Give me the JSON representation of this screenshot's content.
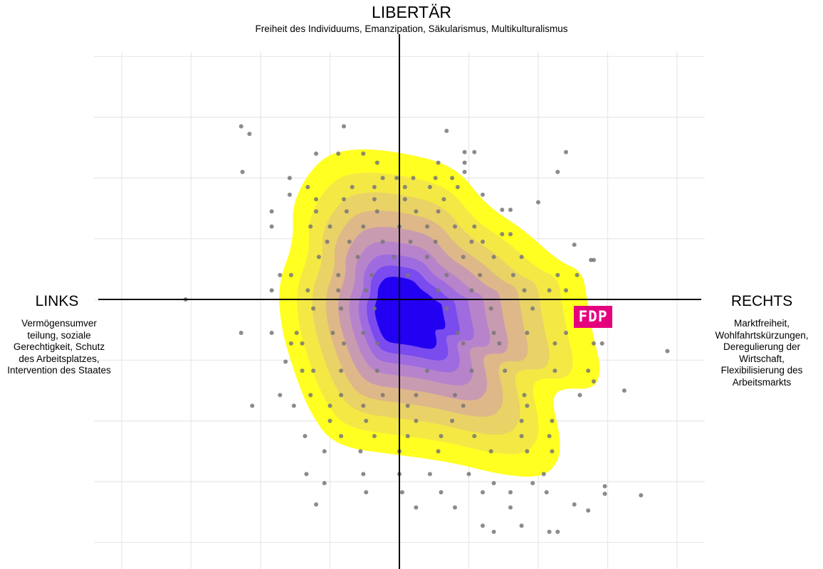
{
  "chart_data": {
    "type": "scatter",
    "title": "",
    "axes": {
      "top": {
        "label": "LIBERTÄR",
        "description": "Freiheit des Individuums, Emanzipation, Säkularismus, Multikulturalismus"
      },
      "left": {
        "label": "LINKS",
        "description": "Vermögensumver teilung, soziale Gerechtigkeit, Schutz des Arbeitsplatzes, Intervention des Staates"
      },
      "right": {
        "label": "RECHTS",
        "description": "Marktfreiheit, Wohlfahrtskürzungen, Deregulierung der Wirtschaft, Flexibilisierung des Arbeitsmarkts"
      }
    },
    "xlim": [
      -11,
      11
    ],
    "ylim": [
      -9.5,
      9.5
    ],
    "grid": true,
    "density_levels": 9,
    "density_colors": [
      "#ffff22",
      "#f4e845",
      "#e9d266",
      "#deb888",
      "#c99bb0",
      "#b784cc",
      "#9f6ce0",
      "#7a4bee",
      "#2200f2"
    ],
    "party": {
      "label": "FDP",
      "x": 7.0,
      "y": -0.55,
      "color": "#e5007d"
    },
    "points": [
      [
        -5.7,
        5.7
      ],
      [
        -5.4,
        5.45
      ],
      [
        -2.0,
        5.7
      ],
      [
        1.7,
        5.55
      ],
      [
        -3.0,
        4.8
      ],
      [
        -2.2,
        4.8
      ],
      [
        -1.3,
        4.8
      ],
      [
        -0.8,
        4.5
      ],
      [
        1.4,
        4.5
      ],
      [
        2.35,
        4.85
      ],
      [
        2.7,
        4.85
      ],
      [
        6.0,
        4.85
      ],
      [
        -5.65,
        4.2
      ],
      [
        -3.95,
        4.0
      ],
      [
        -0.6,
        4.0
      ],
      [
        -0.1,
        4.0
      ],
      [
        0.5,
        4.0
      ],
      [
        1.3,
        4.0
      ],
      [
        1.9,
        4.0
      ],
      [
        2.35,
        4.5
      ],
      [
        2.35,
        4.2
      ],
      [
        5.7,
        4.2
      ],
      [
        -3.3,
        3.7
      ],
      [
        -1.7,
        3.7
      ],
      [
        -0.9,
        3.7
      ],
      [
        0.2,
        3.7
      ],
      [
        1.1,
        3.7
      ],
      [
        2.1,
        3.7
      ],
      [
        -3.95,
        3.45
      ],
      [
        -3.0,
        3.3
      ],
      [
        -2.0,
        3.3
      ],
      [
        -0.9,
        3.3
      ],
      [
        0.2,
        3.3
      ],
      [
        1.6,
        3.3
      ],
      [
        3.0,
        3.45
      ],
      [
        -4.6,
        2.9
      ],
      [
        -3.0,
        2.9
      ],
      [
        -1.9,
        2.9
      ],
      [
        -0.8,
        2.9
      ],
      [
        0.6,
        2.9
      ],
      [
        1.4,
        2.9
      ],
      [
        3.7,
        2.95
      ],
      [
        4.0,
        2.95
      ],
      [
        5.0,
        3.2
      ],
      [
        -4.6,
        2.4
      ],
      [
        -3.2,
        2.4
      ],
      [
        -2.5,
        2.4
      ],
      [
        -1.3,
        2.4
      ],
      [
        0.0,
        2.4
      ],
      [
        1.0,
        2.4
      ],
      [
        2.0,
        2.4
      ],
      [
        2.7,
        2.4
      ],
      [
        3.7,
        2.15
      ],
      [
        4.0,
        2.15
      ],
      [
        -2.6,
        1.9
      ],
      [
        -1.8,
        1.9
      ],
      [
        -0.6,
        1.9
      ],
      [
        0.4,
        1.9
      ],
      [
        1.3,
        1.9
      ],
      [
        2.6,
        1.9
      ],
      [
        3.0,
        1.9
      ],
      [
        6.3,
        1.8
      ],
      [
        -2.9,
        1.4
      ],
      [
        -1.5,
        1.4
      ],
      [
        -0.2,
        1.4
      ],
      [
        1.0,
        1.4
      ],
      [
        2.3,
        1.4
      ],
      [
        3.4,
        1.4
      ],
      [
        4.4,
        1.4
      ],
      [
        6.9,
        1.3
      ],
      [
        -4.3,
        0.8
      ],
      [
        -3.9,
        0.8
      ],
      [
        -2.2,
        0.8
      ],
      [
        -1.0,
        0.8
      ],
      [
        0.3,
        0.8
      ],
      [
        1.7,
        0.8
      ],
      [
        2.9,
        0.8
      ],
      [
        4.1,
        0.8
      ],
      [
        5.7,
        0.8
      ],
      [
        6.4,
        0.8
      ],
      [
        7.0,
        1.3
      ],
      [
        -7.7,
        0.0
      ],
      [
        -4.6,
        0.3
      ],
      [
        -3.3,
        0.3
      ],
      [
        -2.2,
        0.3
      ],
      [
        -1.2,
        0.3
      ],
      [
        1.4,
        0.3
      ],
      [
        2.6,
        0.3
      ],
      [
        4.5,
        0.3
      ],
      [
        5.4,
        0.3
      ],
      [
        6.0,
        0.3
      ],
      [
        -3.1,
        -0.3
      ],
      [
        -2.1,
        -0.3
      ],
      [
        -0.9,
        -0.3
      ],
      [
        1.7,
        -0.3
      ],
      [
        3.3,
        -0.3
      ],
      [
        4.8,
        -0.3
      ],
      [
        6.4,
        -0.3
      ],
      [
        -5.7,
        -1.1
      ],
      [
        -4.6,
        -1.1
      ],
      [
        -3.7,
        -1.1
      ],
      [
        -2.4,
        -1.1
      ],
      [
        -1.3,
        -1.1
      ],
      [
        2.1,
        -1.1
      ],
      [
        3.4,
        -1.1
      ],
      [
        4.6,
        -1.1
      ],
      [
        6.0,
        -1.1
      ],
      [
        -3.9,
        -1.45
      ],
      [
        -3.5,
        -1.45
      ],
      [
        -2.0,
        -1.45
      ],
      [
        -0.8,
        -1.45
      ],
      [
        2.3,
        -1.45
      ],
      [
        3.6,
        -1.45
      ],
      [
        5.6,
        -1.45
      ],
      [
        7.0,
        -1.45
      ],
      [
        7.3,
        -1.45
      ],
      [
        9.65,
        -1.7
      ],
      [
        -4.1,
        -2.05
      ],
      [
        -3.5,
        -2.35
      ],
      [
        -3.1,
        -2.35
      ],
      [
        -2.1,
        -2.35
      ],
      [
        -0.8,
        -2.35
      ],
      [
        1.0,
        -2.35
      ],
      [
        2.6,
        -2.35
      ],
      [
        3.8,
        -2.35
      ],
      [
        5.6,
        -2.35
      ],
      [
        6.8,
        -2.35
      ],
      [
        -4.3,
        -3.15
      ],
      [
        -3.2,
        -3.15
      ],
      [
        -2.1,
        -3.15
      ],
      [
        -0.6,
        -3.15
      ],
      [
        0.6,
        -3.15
      ],
      [
        2.0,
        -3.15
      ],
      [
        4.5,
        -3.15
      ],
      [
        6.5,
        -3.15
      ],
      [
        7.0,
        -2.7
      ],
      [
        8.1,
        -3.0
      ],
      [
        -5.3,
        -3.5
      ],
      [
        -3.8,
        -3.5
      ],
      [
        -2.5,
        -3.5
      ],
      [
        -1.3,
        -3.5
      ],
      [
        0.3,
        -3.5
      ],
      [
        2.3,
        -3.5
      ],
      [
        4.6,
        -3.5
      ],
      [
        -2.5,
        -4.0
      ],
      [
        -1.2,
        -4.0
      ],
      [
        0.6,
        -4.0
      ],
      [
        1.9,
        -4.0
      ],
      [
        4.4,
        -4.0
      ],
      [
        5.5,
        -4.0
      ],
      [
        -3.4,
        -4.5
      ],
      [
        -2.1,
        -4.5
      ],
      [
        -0.9,
        -4.5
      ],
      [
        0.3,
        -4.5
      ],
      [
        1.5,
        -4.5
      ],
      [
        2.7,
        -4.5
      ],
      [
        4.4,
        -4.5
      ],
      [
        5.4,
        -4.5
      ],
      [
        -2.7,
        -5.0
      ],
      [
        -1.4,
        -5.0
      ],
      [
        0.0,
        -5.0
      ],
      [
        1.4,
        -5.0
      ],
      [
        3.3,
        -5.0
      ],
      [
        4.6,
        -5.0
      ],
      [
        5.5,
        -5.0
      ],
      [
        -3.35,
        -5.75
      ],
      [
        -2.7,
        -6.05
      ],
      [
        -1.3,
        -5.75
      ],
      [
        0.0,
        -5.75
      ],
      [
        1.1,
        -5.75
      ],
      [
        2.5,
        -5.75
      ],
      [
        3.4,
        -6.05
      ],
      [
        4.8,
        -6.05
      ],
      [
        5.2,
        -5.75
      ],
      [
        7.4,
        -6.15
      ],
      [
        -1.2,
        -6.35
      ],
      [
        0.1,
        -6.35
      ],
      [
        1.5,
        -6.35
      ],
      [
        3.0,
        -6.35
      ],
      [
        4.0,
        -6.35
      ],
      [
        5.3,
        -6.35
      ],
      [
        7.4,
        -6.4
      ],
      [
        8.7,
        -6.45
      ],
      [
        -3.0,
        -6.75
      ],
      [
        0.6,
        -6.85
      ],
      [
        2.0,
        -6.85
      ],
      [
        4.0,
        -6.85
      ],
      [
        6.3,
        -6.75
      ],
      [
        6.8,
        -6.95
      ],
      [
        3.0,
        -7.45
      ],
      [
        3.4,
        -7.65
      ],
      [
        4.4,
        -7.45
      ],
      [
        5.4,
        -7.65
      ],
      [
        5.7,
        -7.65
      ],
      [
        7.1,
        -9.1
      ]
    ]
  }
}
